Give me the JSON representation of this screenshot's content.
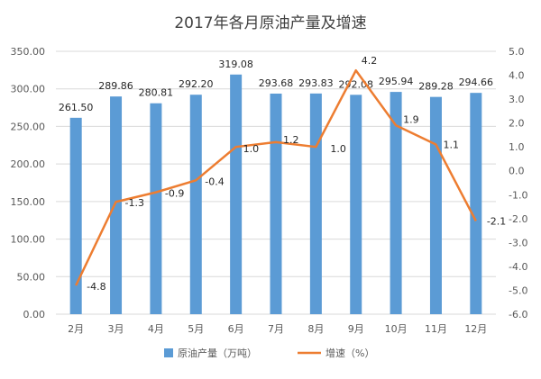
{
  "chart_data": {
    "type": "bar+line",
    "title": "2017年各月原油产量及增速",
    "categories": [
      "2月",
      "3月",
      "4月",
      "5月",
      "6月",
      "7月",
      "8月",
      "9月",
      "10月",
      "11月",
      "12月"
    ],
    "series": [
      {
        "name": "原油产量（万吨）",
        "type": "bar",
        "axis": "left",
        "color": "#5B9BD5",
        "values": [
          261.5,
          289.86,
          280.81,
          292.2,
          319.08,
          293.68,
          293.83,
          292.08,
          295.94,
          289.28,
          294.66
        ],
        "labels": [
          "261.50",
          "289.86",
          "280.81",
          "292.20",
          "319.08",
          "293.68",
          "293.83",
          "292.08",
          "295.94",
          "289.28",
          "294.66"
        ]
      },
      {
        "name": "增速（%）",
        "type": "line",
        "axis": "right",
        "color": "#ED7D31",
        "values": [
          -4.8,
          -1.3,
          -0.9,
          -0.4,
          1.0,
          1.2,
          1.0,
          4.2,
          1.9,
          1.1,
          -2.1
        ],
        "labels": [
          "-4.8",
          "-1.3",
          "-0.9",
          "-0.4",
          "1.0",
          "1.2",
          "1.0",
          "4.2",
          "1.9",
          "1.1",
          "-2.1"
        ]
      }
    ],
    "y_left": {
      "min": 0,
      "max": 350,
      "ticks": [
        "0.00",
        "50.00",
        "100.00",
        "150.00",
        "200.00",
        "250.00",
        "300.00",
        "350.00"
      ]
    },
    "y_right": {
      "min": -6,
      "max": 5,
      "ticks": [
        "-6.0",
        "-5.0",
        "-4.0",
        "-3.0",
        "-2.0",
        "-1.0",
        "0.0",
        "1.0",
        "2.0",
        "3.0",
        "4.0",
        "5.0"
      ]
    },
    "grid": true,
    "legend_position": "bottom"
  }
}
